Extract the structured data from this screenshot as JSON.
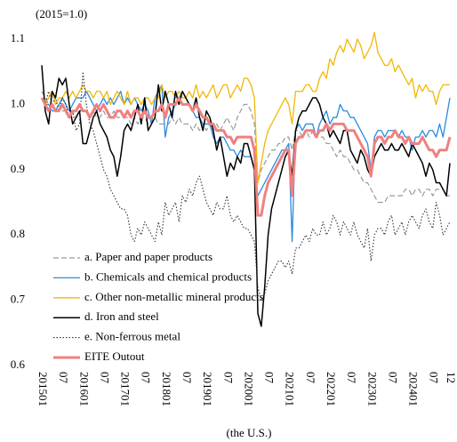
{
  "chart_data": {
    "type": "line",
    "annotations": [
      "(2015=1.0)",
      "(the U.S.)"
    ],
    "categories": [
      "201501",
      null,
      null,
      null,
      null,
      null,
      "07",
      null,
      null,
      null,
      null,
      null,
      "201601",
      null,
      null,
      null,
      null,
      null,
      "07",
      null,
      null,
      null,
      null,
      null,
      "201701",
      null,
      null,
      null,
      null,
      null,
      "07",
      null,
      null,
      null,
      null,
      null,
      "201801",
      null,
      null,
      null,
      null,
      null,
      "07",
      null,
      null,
      null,
      null,
      null,
      "201901",
      null,
      null,
      null,
      null,
      null,
      "07",
      null,
      null,
      null,
      null,
      null,
      "202001",
      null,
      null,
      null,
      null,
      null,
      "07",
      null,
      null,
      null,
      null,
      null,
      "202101",
      null,
      null,
      null,
      null,
      null,
      "07",
      null,
      null,
      null,
      null,
      null,
      "202201",
      null,
      null,
      null,
      null,
      null,
      "07",
      null,
      null,
      null,
      null,
      null,
      "202301",
      null,
      null,
      null,
      null,
      null,
      "07",
      null,
      null,
      null,
      null,
      null,
      "202401",
      null,
      null,
      null,
      null,
      null,
      "07",
      null,
      null,
      null,
      null,
      "12"
    ],
    "ylim": [
      0.6,
      1.12
    ],
    "yticks": [
      0.6,
      0.7,
      0.8,
      0.9,
      {
        "value": 1,
        "label": "1.0"
      },
      1.1
    ],
    "grid": false,
    "legend": "lower left",
    "series": [
      {
        "name": "a. Paper and paper products",
        "color": "#999999",
        "dash": "dashed",
        "width": 1.2,
        "values": [
          1.02,
          1.01,
          1.0,
          1.0,
          0.99,
          1.0,
          0.99,
          0.99,
          0.98,
          0.99,
          0.98,
          0.99,
          0.99,
          0.99,
          0.98,
          0.99,
          0.98,
          0.98,
          0.99,
          0.98,
          0.98,
          0.99,
          0.98,
          0.98,
          0.98,
          0.98,
          0.97,
          0.98,
          0.97,
          0.98,
          0.98,
          0.97,
          0.97,
          0.98,
          0.97,
          0.97,
          0.97,
          0.97,
          0.98,
          0.97,
          0.98,
          0.97,
          0.97,
          0.97,
          0.96,
          0.97,
          0.96,
          0.97,
          0.96,
          0.97,
          0.96,
          0.97,
          0.96,
          0.97,
          0.98,
          0.97,
          0.96,
          0.98,
          0.99,
          1.0,
          1.0,
          0.99,
          0.97,
          0.88,
          0.9,
          0.91,
          0.92,
          0.93,
          0.93,
          0.94,
          0.94,
          0.95,
          0.95,
          0.93,
          0.96,
          0.96,
          0.95,
          0.96,
          0.95,
          0.96,
          0.95,
          0.95,
          0.95,
          0.94,
          0.94,
          0.93,
          0.92,
          0.93,
          0.92,
          0.92,
          0.91,
          0.9,
          0.9,
          0.89,
          0.88,
          0.88,
          0.87,
          0.86,
          0.85,
          0.85,
          0.85,
          0.86,
          0.86,
          0.86,
          0.86,
          0.86,
          0.87,
          0.87,
          0.86,
          0.87,
          0.87,
          0.86,
          0.87,
          0.87,
          0.86,
          0.87,
          0.87,
          0.87,
          0.86,
          0.86
        ]
      },
      {
        "name": "b. Chemicals and chemical products",
        "color": "#2a8be0",
        "dash": "solid",
        "width": 1.3,
        "values": [
          1.01,
          1.0,
          1.0,
          0.99,
          0.99,
          1.0,
          1.01,
          1.0,
          0.99,
          1.0,
          1.01,
          1.01,
          1.01,
          1.02,
          1.01,
          1.0,
          0.99,
          1.0,
          1.01,
          1.0,
          1.01,
          1.0,
          1.01,
          1.02,
          1.0,
          1.01,
          1.0,
          1.01,
          1.0,
          0.99,
          1.0,
          0.99,
          0.97,
          1.01,
          1.02,
          1.03,
          0.95,
          0.98,
          0.99,
          1.0,
          1.01,
          1.02,
          1.01,
          1.0,
          0.99,
          0.98,
          0.98,
          0.97,
          0.97,
          0.97,
          0.95,
          0.94,
          0.95,
          0.95,
          0.94,
          0.93,
          0.93,
          0.92,
          0.93,
          0.92,
          0.92,
          0.92,
          0.9,
          0.86,
          0.87,
          0.88,
          0.89,
          0.9,
          0.91,
          0.92,
          0.93,
          0.93,
          0.94,
          0.79,
          0.96,
          0.97,
          0.96,
          0.97,
          0.97,
          0.97,
          0.95,
          0.97,
          0.98,
          0.99,
          0.97,
          0.98,
          0.98,
          1.0,
          0.99,
          0.99,
          0.98,
          0.98,
          0.97,
          0.96,
          0.95,
          0.94,
          0.9,
          0.95,
          0.96,
          0.96,
          0.95,
          0.96,
          0.96,
          0.96,
          0.95,
          0.96,
          0.95,
          0.95,
          0.93,
          0.95,
          0.95,
          0.96,
          0.95,
          0.96,
          0.96,
          0.95,
          0.97,
          0.95,
          0.98,
          1.01
        ]
      },
      {
        "name": "c. Other non-metallic mineral products",
        "color": "#f2b705",
        "dash": "solid",
        "width": 1.3,
        "values": [
          1.01,
          1.0,
          1.01,
          1.02,
          1.0,
          1.01,
          1.01,
          1.02,
          1.01,
          1.02,
          1.01,
          1.02,
          1.03,
          1.02,
          1.02,
          1.01,
          1.02,
          1.02,
          1.01,
          1.02,
          1.0,
          1.01,
          1.02,
          1.01,
          1.0,
          1.02,
          1.0,
          1.01,
          1.01,
          1.0,
          1.01,
          1.01,
          1.0,
          1.01,
          1.01,
          1.03,
          1.01,
          1.02,
          1.02,
          1.01,
          1.02,
          1.01,
          1.01,
          1.02,
          1.01,
          1.03,
          1.01,
          1.02,
          1.01,
          1.02,
          1.03,
          1.01,
          1.02,
          1.03,
          1.03,
          1.01,
          1.02,
          1.03,
          1.02,
          1.04,
          1.04,
          1.03,
          1.01,
          0.88,
          0.91,
          0.94,
          0.96,
          0.97,
          0.98,
          0.99,
          1.0,
          1.01,
          1.0,
          0.97,
          1.02,
          1.02,
          1.02,
          1.03,
          1.03,
          1.02,
          1.02,
          1.04,
          1.05,
          1.04,
          1.07,
          1.06,
          1.08,
          1.09,
          1.08,
          1.1,
          1.09,
          1.08,
          1.1,
          1.09,
          1.07,
          1.08,
          1.09,
          1.11,
          1.08,
          1.07,
          1.06,
          1.06,
          1.07,
          1.05,
          1.06,
          1.05,
          1.04,
          1.03,
          1.04,
          1.01,
          1.03,
          1.02,
          1.03,
          1.02,
          1.02,
          1.0,
          1.02,
          1.03,
          1.03,
          1.03
        ]
      },
      {
        "name": "d. Iron and steel",
        "color": "#000000",
        "dash": "solid",
        "width": 1.5,
        "values": [
          1.06,
          0.99,
          0.97,
          1.02,
          1.01,
          1.04,
          1.03,
          1.04,
          1.0,
          0.97,
          0.98,
          0.99,
          0.94,
          0.94,
          0.96,
          0.98,
          0.99,
          0.97,
          0.96,
          0.95,
          0.93,
          0.92,
          0.89,
          0.92,
          0.96,
          0.97,
          0.96,
          0.98,
          1.0,
          0.97,
          1.01,
          0.96,
          0.97,
          0.98,
          1.03,
          0.99,
          1.02,
          1.0,
          0.98,
          1.02,
          1.0,
          1.02,
          1.01,
          1.0,
          0.99,
          1.01,
          0.98,
          0.96,
          0.99,
          0.98,
          0.96,
          0.93,
          0.95,
          0.92,
          0.89,
          0.91,
          0.9,
          0.92,
          0.91,
          0.94,
          0.94,
          0.92,
          0.9,
          0.68,
          0.66,
          0.72,
          0.8,
          0.84,
          0.86,
          0.88,
          0.9,
          0.92,
          0.93,
          0.89,
          0.96,
          0.98,
          0.99,
          0.99,
          1.0,
          1.01,
          1.01,
          1.0,
          0.98,
          0.97,
          0.95,
          0.96,
          0.95,
          0.94,
          0.96,
          0.96,
          0.93,
          0.92,
          0.91,
          0.93,
          0.92,
          0.9,
          0.89,
          0.92,
          0.93,
          0.94,
          0.93,
          0.93,
          0.94,
          0.93,
          0.93,
          0.94,
          0.93,
          0.92,
          0.94,
          0.93,
          0.92,
          0.91,
          0.89,
          0.91,
          0.9,
          0.88,
          0.88,
          0.87,
          0.86,
          0.91
        ]
      },
      {
        "name": "e. Non-ferrous metal",
        "color": "#333333",
        "dash": "dotted",
        "width": 1.1,
        "values": [
          1.01,
          1.0,
          1.02,
          1.0,
          1.01,
          0.99,
          1.01,
          1.0,
          0.98,
          0.99,
          0.96,
          0.97,
          1.05,
          1.0,
          0.97,
          0.96,
          0.94,
          0.92,
          0.9,
          0.89,
          0.87,
          0.86,
          0.85,
          0.84,
          0.84,
          0.83,
          0.8,
          0.79,
          0.81,
          0.8,
          0.82,
          0.81,
          0.8,
          0.79,
          0.82,
          0.8,
          0.85,
          0.83,
          0.84,
          0.85,
          0.82,
          0.86,
          0.85,
          0.87,
          0.86,
          0.88,
          0.89,
          0.87,
          0.85,
          0.84,
          0.83,
          0.85,
          0.84,
          0.84,
          0.86,
          0.83,
          0.82,
          0.83,
          0.82,
          0.81,
          0.81,
          0.8,
          0.79,
          0.72,
          0.7,
          0.71,
          0.73,
          0.74,
          0.75,
          0.76,
          0.76,
          0.75,
          0.76,
          0.74,
          0.78,
          0.78,
          0.79,
          0.8,
          0.79,
          0.81,
          0.8,
          0.8,
          0.82,
          0.8,
          0.81,
          0.83,
          0.82,
          0.8,
          0.82,
          0.81,
          0.8,
          0.82,
          0.8,
          0.79,
          0.78,
          0.81,
          0.76,
          0.8,
          0.81,
          0.81,
          0.8,
          0.82,
          0.83,
          0.8,
          0.81,
          0.82,
          0.8,
          0.82,
          0.83,
          0.82,
          0.81,
          0.83,
          0.84,
          0.82,
          0.81,
          0.85,
          0.83,
          0.8,
          0.81,
          0.82
        ]
      },
      {
        "name": "EITE Outout",
        "color": "#f08080",
        "dash": "solid",
        "width": 3,
        "values": [
          1.01,
          1.0,
          0.99,
          1.0,
          0.99,
          0.99,
          1.0,
          0.99,
          0.98,
          0.99,
          0.99,
          1.0,
          0.99,
          0.99,
          0.98,
          0.99,
          1.0,
          0.99,
          1.0,
          0.99,
          0.98,
          0.98,
          0.99,
          0.99,
          0.98,
          0.99,
          0.98,
          0.99,
          0.99,
          0.98,
          0.99,
          0.98,
          0.98,
          0.99,
          0.99,
          1.0,
          0.98,
          1.0,
          1.0,
          1.0,
          1.01,
          1.0,
          1.0,
          1.0,
          0.99,
          1.0,
          0.99,
          0.98,
          0.98,
          0.97,
          0.97,
          0.96,
          0.96,
          0.96,
          0.95,
          0.95,
          0.94,
          0.95,
          0.95,
          0.95,
          0.95,
          0.95,
          0.93,
          0.83,
          0.83,
          0.86,
          0.88,
          0.89,
          0.9,
          0.91,
          0.92,
          0.93,
          0.93,
          0.86,
          0.94,
          0.95,
          0.95,
          0.96,
          0.96,
          0.96,
          0.95,
          0.96,
          0.96,
          0.97,
          0.96,
          0.97,
          0.97,
          0.97,
          0.97,
          0.96,
          0.96,
          0.96,
          0.95,
          0.94,
          0.93,
          0.92,
          0.89,
          0.94,
          0.95,
          0.95,
          0.94,
          0.95,
          0.95,
          0.96,
          0.95,
          0.95,
          0.94,
          0.95,
          0.94,
          0.94,
          0.94,
          0.95,
          0.94,
          0.93,
          0.93,
          0.92,
          0.93,
          0.93,
          0.93,
          0.95
        ]
      }
    ]
  }
}
